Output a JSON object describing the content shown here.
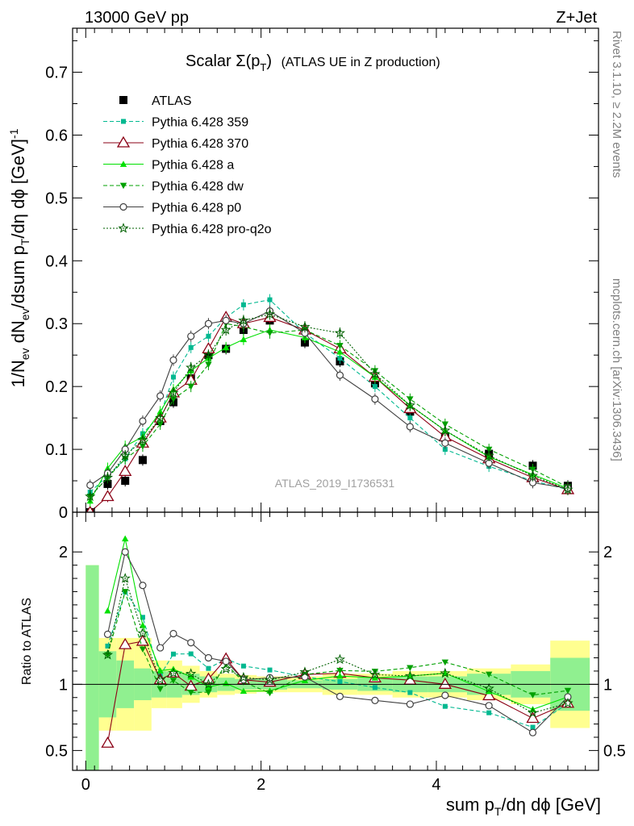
{
  "header": {
    "left": "13000 GeV pp",
    "right": "Z+Jet"
  },
  "title": {
    "main": "Scalar Σ(p",
    "sub": "T",
    "end": ")",
    "note": "(ATLAS UE in Z production)"
  },
  "ylabel_main": "1/N",
  "ylabel_ratio": "Ratio to ATLAS",
  "xlabel": "sum p",
  "xlabel_sub": "T",
  "xlabel_end": "/dη dϕ [GeV]",
  "analysis_id": "ATLAS_2019_I1736531",
  "side_top": "Rivet 3.1.10, ≥ 2.2M events",
  "side_bottom": "mcplots.cern.ch [arXiv:1306.3436]",
  "colors": {
    "data": "#000000",
    "p359": "#00b890",
    "p370": "#8b0015",
    "pa": "#00e000",
    "pdw": "#00a000",
    "pp0": "#404040",
    "pq2o": "#006000"
  },
  "chart_data": {
    "type": "scatter",
    "x": [
      0.05,
      0.25,
      0.45,
      0.65,
      0.85,
      1.0,
      1.2,
      1.4,
      1.6,
      1.8,
      2.1,
      2.5,
      2.9,
      3.3,
      3.7,
      4.1,
      4.6,
      5.1,
      5.5
    ],
    "xlim": [
      -0.15,
      5.85
    ],
    "main_ylim": [
      0,
      0.77
    ],
    "ratio_ylim": [
      0.35,
      2.3
    ],
    "main_yticks": [
      "0",
      "0.1",
      "0.2",
      "0.3",
      "0.4",
      "0.5",
      "0.6",
      "0.7"
    ],
    "ratio_yticks": [
      "0.5",
      "1",
      "2"
    ],
    "xticks": [
      "0",
      "2",
      "4"
    ],
    "series": [
      {
        "name": "ATLAS",
        "key": "data",
        "values": [
          0.0,
          0.045,
          0.05,
          0.083,
          0.145,
          0.175,
          0.213,
          0.25,
          0.26,
          0.29,
          0.305,
          0.27,
          0.24,
          0.205,
          0.16,
          0.12,
          0.093,
          0.074,
          0.042
        ]
      },
      {
        "name": "Pythia 6.428 359",
        "key": "p359",
        "values": [
          0.032,
          0.058,
          0.085,
          0.125,
          0.155,
          0.215,
          0.262,
          0.28,
          0.31,
          0.33,
          0.338,
          0.285,
          0.245,
          0.2,
          0.15,
          0.1,
          0.073,
          0.05,
          0.036
        ]
      },
      {
        "name": "Pythia 6.428 370",
        "key": "p370",
        "values": [
          0.0,
          0.025,
          0.065,
          0.11,
          0.15,
          0.19,
          0.21,
          0.26,
          0.31,
          0.3,
          0.31,
          0.29,
          0.26,
          0.215,
          0.165,
          0.12,
          0.085,
          0.055,
          0.036
        ]
      },
      {
        "name": "Pythia 6.428 a",
        "key": "pa",
        "values": [
          0.018,
          0.07,
          0.105,
          0.12,
          0.16,
          0.195,
          0.225,
          0.245,
          0.262,
          0.275,
          0.29,
          0.278,
          0.255,
          0.215,
          0.17,
          0.13,
          0.088,
          0.06,
          0.038
        ]
      },
      {
        "name": "Pythia 6.428 dw",
        "key": "pdw",
        "values": [
          0.025,
          0.055,
          0.085,
          0.105,
          0.14,
          0.18,
          0.2,
          0.235,
          0.3,
          0.295,
          0.285,
          0.29,
          0.265,
          0.225,
          0.18,
          0.14,
          0.1,
          0.068,
          0.04
        ]
      },
      {
        "name": "Pythia 6.428 p0",
        "key": "pp0",
        "values": [
          0.043,
          0.062,
          0.1,
          0.145,
          0.185,
          0.242,
          0.28,
          0.3,
          0.305,
          0.3,
          0.32,
          0.285,
          0.218,
          0.18,
          0.136,
          0.11,
          0.078,
          0.047,
          0.038
        ]
      },
      {
        "name": "Pythia 6.428 pro-q2o",
        "key": "pq2o",
        "values": [
          0.025,
          0.055,
          0.09,
          0.115,
          0.15,
          0.19,
          0.23,
          0.25,
          0.29,
          0.305,
          0.315,
          0.295,
          0.285,
          0.22,
          0.17,
          0.13,
          0.09,
          0.058,
          0.036
        ]
      }
    ]
  }
}
